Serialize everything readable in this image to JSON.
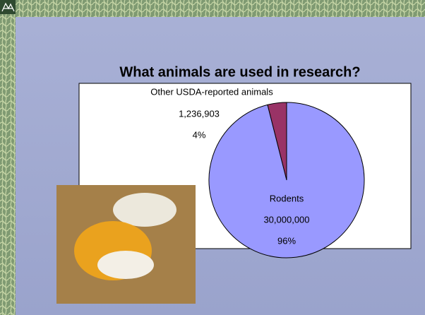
{
  "chart_data": {
    "type": "pie",
    "title": "What animals are used in research?",
    "categories": [
      "Other USDA-reported animals",
      "Rodents"
    ],
    "values": [
      1236903,
      30000000
    ],
    "value_labels": [
      "1,236,903",
      "30,000,000"
    ],
    "percent_labels": [
      "4%",
      "96%"
    ],
    "colors": [
      "#993366",
      "#9999ff"
    ]
  }
}
